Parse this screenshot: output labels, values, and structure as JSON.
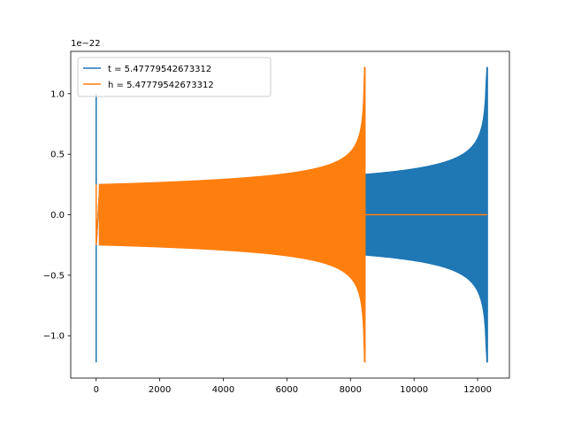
{
  "chart_data": {
    "type": "line",
    "title": "",
    "xlabel": "",
    "ylabel": "",
    "y_offset_label": "1e−22",
    "xlim": [
      -800,
      13000
    ],
    "ylim": [
      -1.35,
      1.35
    ],
    "x_ticks": [
      0,
      2000,
      4000,
      6000,
      8000,
      10000,
      12000
    ],
    "x_tick_labels": [
      "0",
      "2000",
      "4000",
      "6000",
      "8000",
      "10000",
      "12000"
    ],
    "y_ticks": [
      -1.0,
      -0.5,
      0.0,
      0.5,
      1.0
    ],
    "y_tick_labels": [
      "−1.0",
      "−0.5",
      "0.0",
      "0.5",
      "1.0"
    ],
    "grid": false,
    "legend_position": "top-left",
    "series": [
      {
        "name": "t = 5.47779542673312",
        "color": "#1f77b4",
        "start": 0,
        "end": 12300,
        "spike_low": -1.22,
        "spike_high": 1.0,
        "amplitude_start": 0.25,
        "amplitude_end": 1.22,
        "tail_zero_from": null
      },
      {
        "name": "h = 5.47779542673312",
        "color": "#ff7f0e",
        "start": 0,
        "end": 12300,
        "spike_low": -0.25,
        "spike_high": 0.25,
        "amplitude_start": 0.25,
        "amplitude_end": 1.22,
        "merger_x": 8450,
        "tail_zero_from": 8450
      }
    ]
  }
}
